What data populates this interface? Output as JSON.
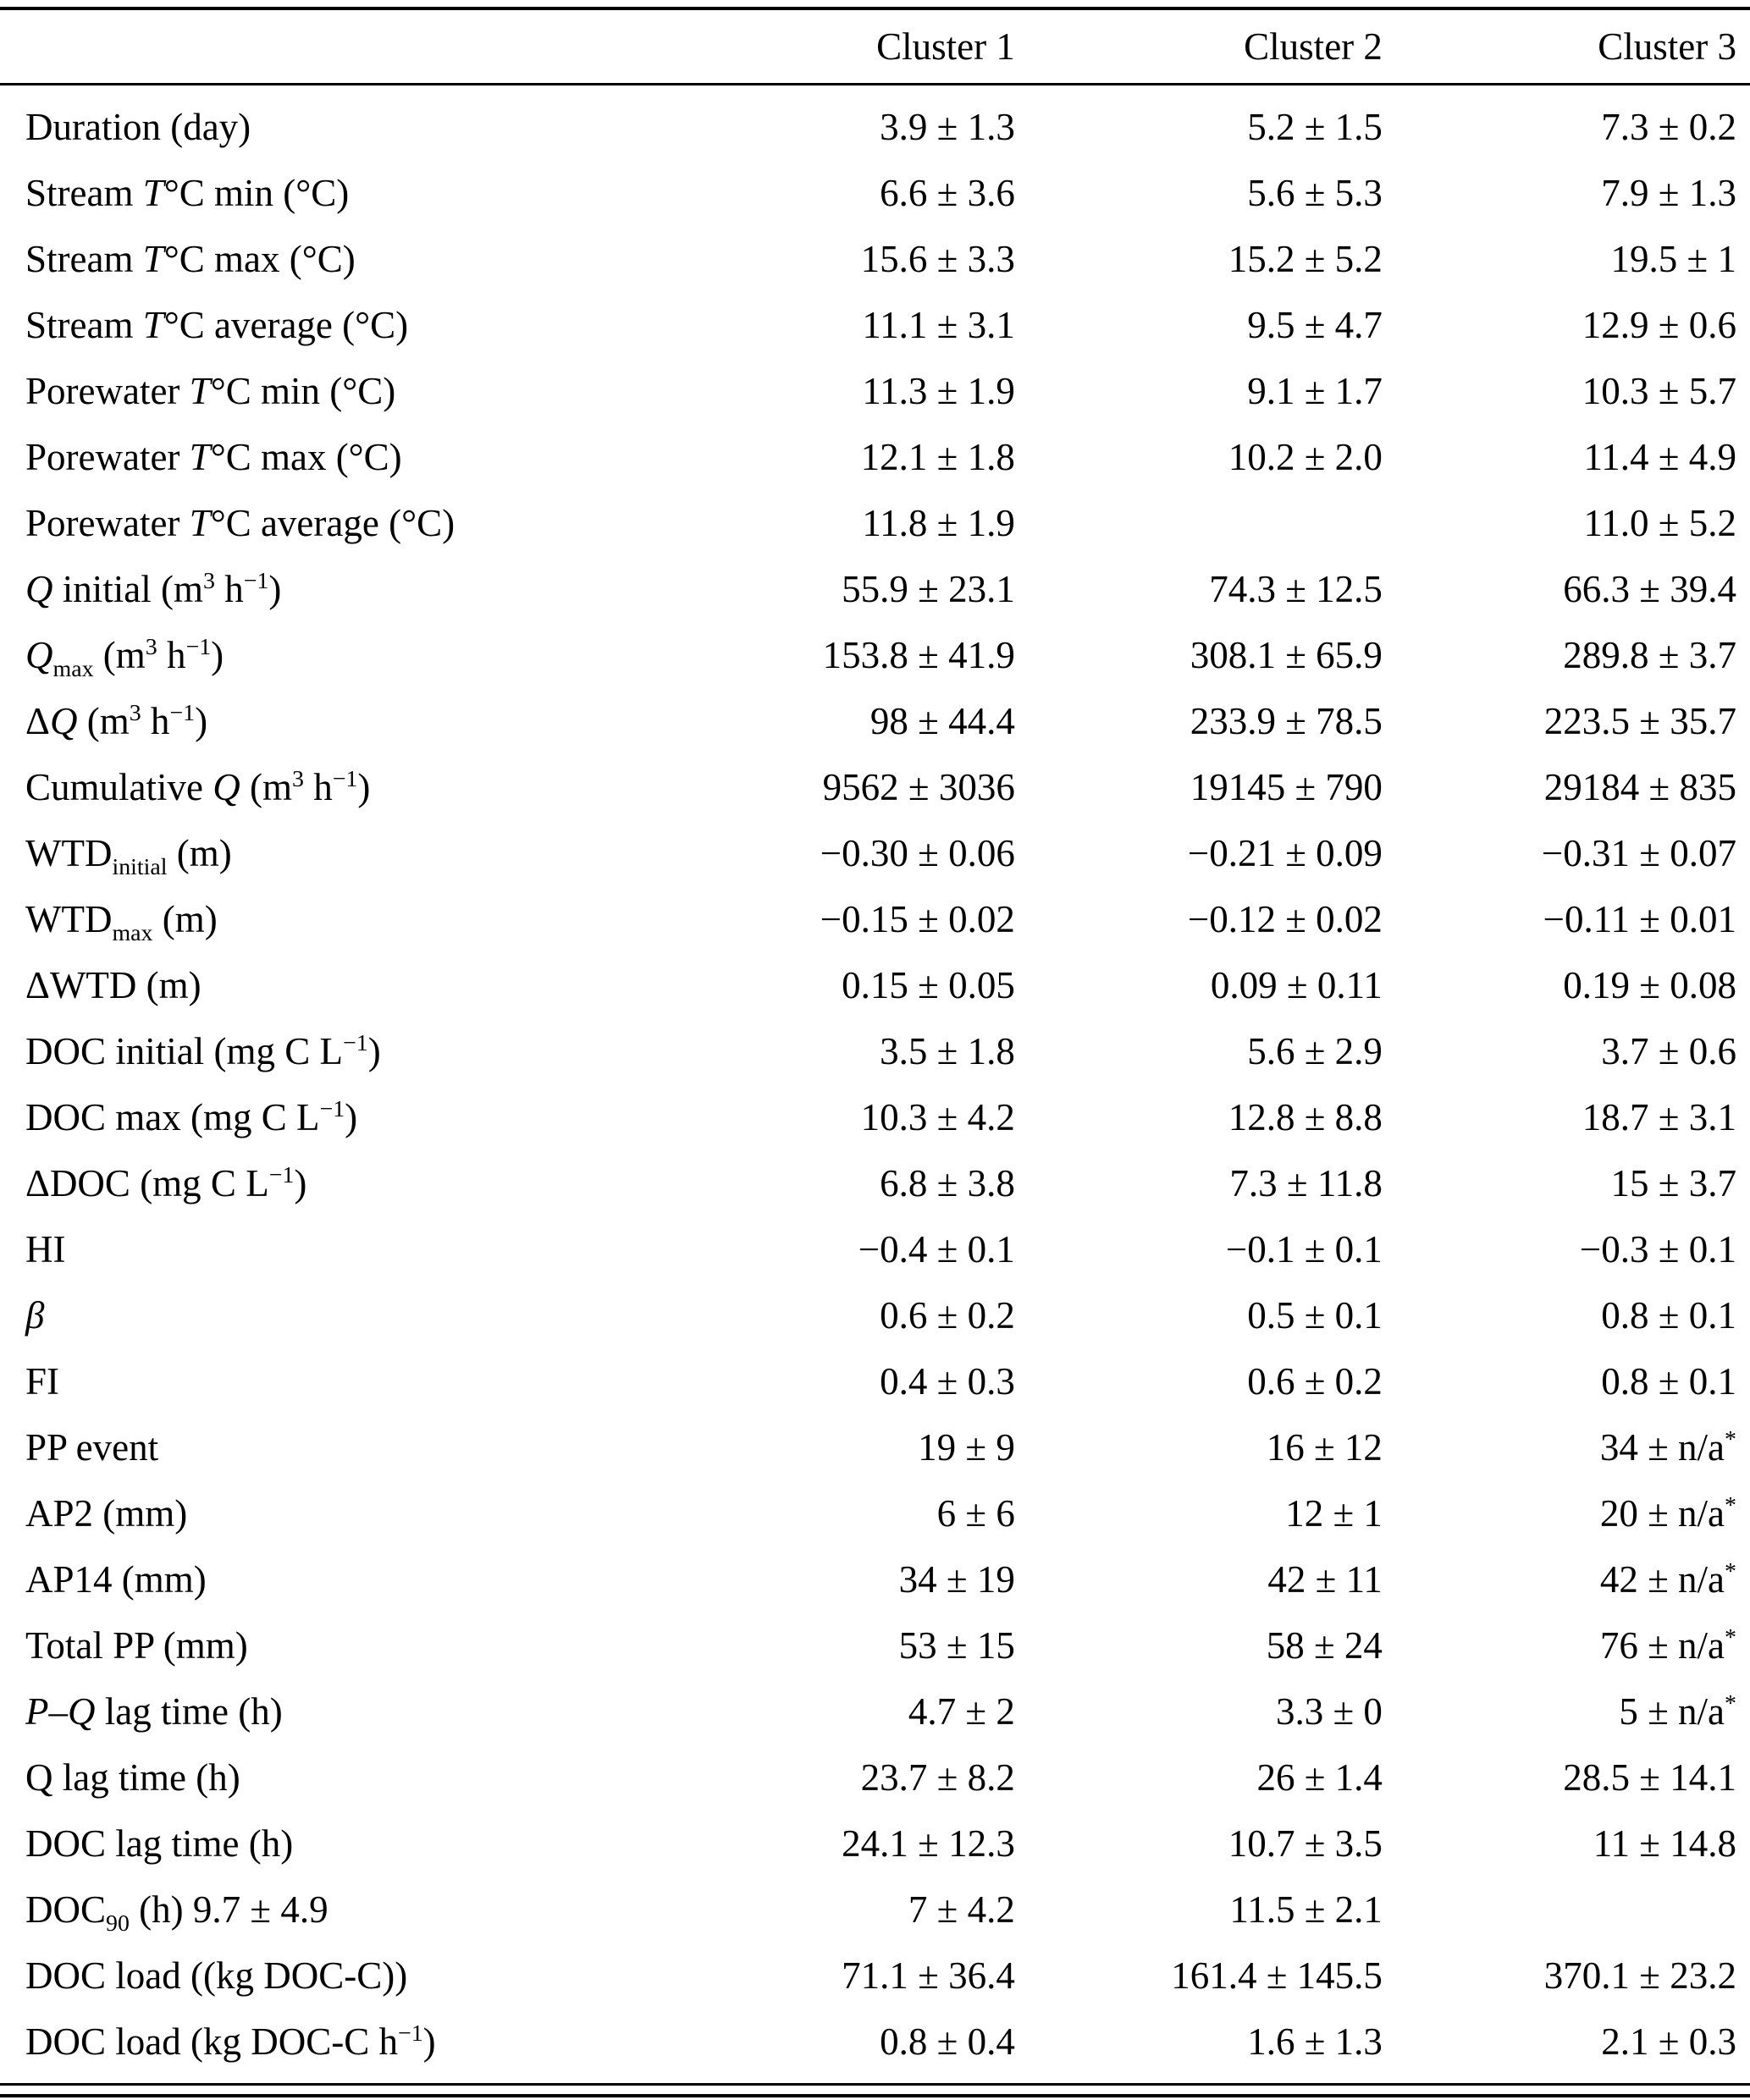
{
  "table": {
    "columns": [
      "",
      "Cluster 1",
      "Cluster 2",
      "Cluster 3"
    ],
    "rows": [
      {
        "label": "Duration (day)",
        "values": [
          "3.9 ± 1.3",
          "5.2 ± 1.5",
          "7.3 ± 0.2"
        ]
      },
      {
        "label": "Stream *T*°C min (°C)",
        "values": [
          "6.6 ± 3.6",
          "5.6 ± 5.3",
          "7.9 ± 1.3"
        ]
      },
      {
        "label": "Stream *T*°C max (°C)",
        "values": [
          "15.6 ± 3.3",
          "15.2 ± 5.2",
          "19.5 ± 1"
        ]
      },
      {
        "label": "Stream *T*°C average (°C)",
        "values": [
          "11.1 ± 3.1",
          "9.5 ± 4.7",
          "12.9 ± 0.6"
        ]
      },
      {
        "label": "Porewater *T*°C min (°C)",
        "values": [
          "11.3 ± 1.9",
          "9.1 ± 1.7",
          "10.3 ± 5.7"
        ]
      },
      {
        "label": "Porewater *T*°C max (°C)",
        "values": [
          "12.1 ± 1.8",
          "10.2 ± 2.0",
          "11.4 ± 4.9"
        ]
      },
      {
        "label": "Porewater *T*°C average (°C)",
        "values": [
          "11.8 ± 1.9",
          "",
          "11.0 ± 5.2"
        ]
      },
      {
        "label": "*Q* initial (m^{3} h^{−1})",
        "values": [
          "55.9 ± 23.1",
          "74.3 ± 12.5",
          "66.3 ± 39.4"
        ]
      },
      {
        "label": "*Q*_{max} (m^{3} h^{−1})",
        "values": [
          "153.8 ± 41.9",
          "308.1 ± 65.9",
          "289.8 ± 3.7"
        ]
      },
      {
        "label": "Δ*Q* (m^{3} h^{−1})",
        "values": [
          "98 ± 44.4",
          "233.9 ± 78.5",
          "223.5 ± 35.7"
        ]
      },
      {
        "label": "Cumulative *Q* (m^{3} h^{−1})",
        "values": [
          "9562 ± 3036",
          "19145 ± 790",
          "29184 ± 835"
        ]
      },
      {
        "label": "WTD_{initial} (m)",
        "values": [
          "−0.30 ± 0.06",
          "−0.21 ± 0.09",
          "−0.31 ± 0.07"
        ]
      },
      {
        "label": "WTD_{max} (m)",
        "values": [
          "−0.15 ± 0.02",
          "−0.12 ± 0.02",
          "−0.11 ± 0.01"
        ]
      },
      {
        "label": "ΔWTD (m)",
        "values": [
          "0.15 ± 0.05",
          "0.09 ± 0.11",
          "0.19 ± 0.08"
        ]
      },
      {
        "label": "DOC initial (mg C L^{−1})",
        "values": [
          "3.5 ± 1.8",
          "5.6 ± 2.9",
          "3.7 ± 0.6"
        ]
      },
      {
        "label": "DOC max (mg C L^{−1})",
        "values": [
          "10.3 ± 4.2",
          "12.8 ± 8.8",
          "18.7 ± 3.1"
        ]
      },
      {
        "label": "ΔDOC (mg C L^{−1})",
        "values": [
          "6.8 ± 3.8",
          "7.3 ± 11.8",
          "15 ± 3.7"
        ]
      },
      {
        "label": "HI",
        "values": [
          "−0.4 ± 0.1",
          "−0.1 ± 0.1",
          "−0.3 ± 0.1"
        ]
      },
      {
        "label": "*β*",
        "values": [
          "0.6 ± 0.2",
          "0.5 ± 0.1",
          "0.8 ± 0.1"
        ]
      },
      {
        "label": "FI",
        "values": [
          "0.4 ± 0.3",
          "0.6 ± 0.2",
          "0.8 ± 0.1"
        ]
      },
      {
        "label": "PP event",
        "values": [
          "19 ± 9",
          "16 ± 12",
          "34 ± n/a^{*}"
        ]
      },
      {
        "label": "AP2 (mm)",
        "values": [
          "6 ± 6",
          "12 ± 1",
          "20 ± n/a^{*}"
        ]
      },
      {
        "label": "AP14 (mm)",
        "values": [
          "34 ± 19",
          "42 ± 11",
          "42 ± n/a^{*}"
        ]
      },
      {
        "label": "Total PP (mm)",
        "values": [
          "53 ± 15",
          "58 ± 24",
          "76 ± n/a^{*}"
        ]
      },
      {
        "label": "*P*–*Q* lag time (h)",
        "values": [
          "4.7 ± 2",
          "3.3 ± 0",
          "5 ± n/a^{*}"
        ]
      },
      {
        "label": "Q lag time (h)",
        "values": [
          "23.7 ± 8.2",
          "26 ± 1.4",
          "28.5 ± 14.1"
        ]
      },
      {
        "label": "DOC lag time (h)",
        "values": [
          "24.1 ± 12.3",
          "10.7 ± 3.5",
          "11 ± 14.8"
        ]
      },
      {
        "label": "DOC_{90} (h) 9.7 ± 4.9",
        "values": [
          "7 ± 4.2",
          "11.5 ± 2.1",
          ""
        ]
      },
      {
        "label": "DOC load ((kg DOC-C))",
        "values": [
          "71.1 ± 36.4",
          "161.4 ± 145.5",
          "370.1 ± 23.2"
        ]
      },
      {
        "label": "DOC load (kg DOC-C h^{−1})",
        "values": [
          "0.8 ± 0.4",
          "1.6 ± 1.3",
          "2.1 ± 0.3"
        ]
      }
    ]
  }
}
